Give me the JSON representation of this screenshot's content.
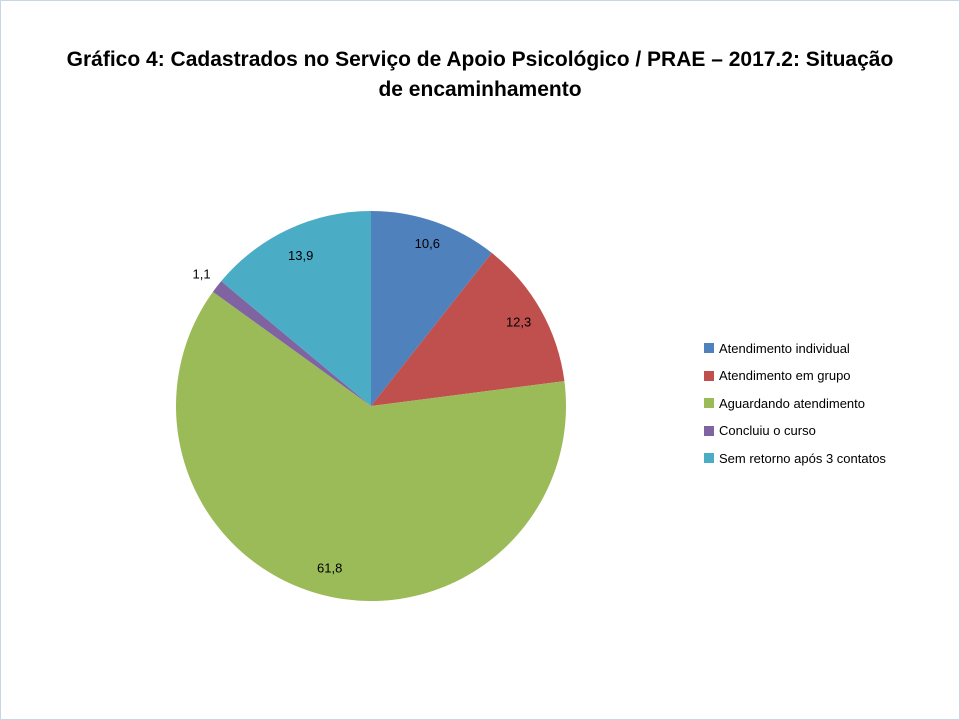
{
  "slide": {
    "title": "Gráfico 4: Cadastrados no Serviço de Apoio Psicológico / PRAE – 2017.2: Situação de encaminhamento"
  },
  "chart_data": {
    "type": "pie",
    "title": "Gráfico 4: Cadastrados no Serviço de Apoio Psicológico / PRAE – 2017.2: Situação de encaminhamento",
    "categories": [
      "Atendimento individual",
      "Atendimento em grupo",
      "Aguardando atendimento",
      "Concluiu o curso",
      "Sem retorno após 3 contatos"
    ],
    "values": [
      10.6,
      12.3,
      61.8,
      1.1,
      13.9
    ],
    "value_labels": [
      "10,6",
      "12,3",
      "61,8",
      "1,1",
      "13,9"
    ],
    "colors": [
      "#4f81bd",
      "#c0504d",
      "#9bbb59",
      "#8064a2",
      "#4bacc6"
    ],
    "start_angle_deg": 0,
    "direction": "clockwise",
    "legend_position": "right",
    "label_radius": [
      0.88,
      0.87,
      0.86,
      1.1,
      0.85
    ]
  }
}
